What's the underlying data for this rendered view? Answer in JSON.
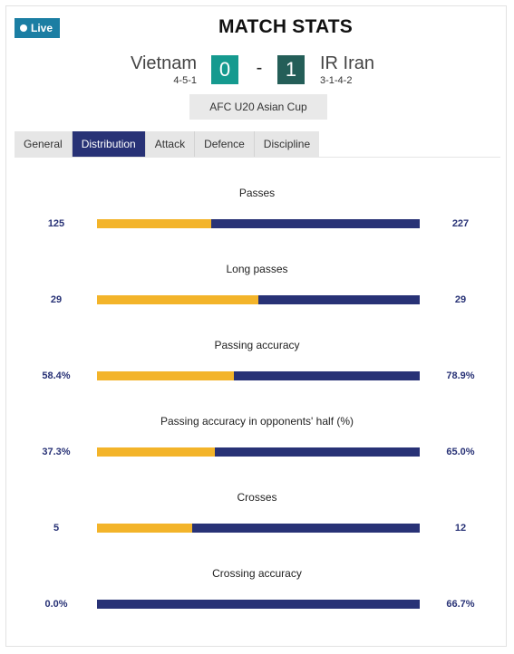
{
  "live_label": "Live",
  "title": "MATCH STATS",
  "home": {
    "name": "Vietnam",
    "formation": "4-5-1",
    "score": "0"
  },
  "away": {
    "name": "IR Iran",
    "formation": "3-1-4-2",
    "score": "1"
  },
  "score_separator": "-",
  "competition": "AFC U20 Asian Cup",
  "tabs": [
    {
      "label": "General"
    },
    {
      "label": "Distribution"
    },
    {
      "label": "Attack"
    },
    {
      "label": "Defence"
    },
    {
      "label": "Discipline"
    }
  ],
  "active_tab": "Distribution",
  "colors": {
    "home_bar": "#f3b42a",
    "away_bar": "#283276",
    "live_badge": "#1b7ea3",
    "active_tab": "#283276"
  },
  "stats": [
    {
      "label": "Passes",
      "home": "125",
      "away": "227",
      "home_share": 0.355
    },
    {
      "label": "Long passes",
      "home": "29",
      "away": "29",
      "home_share": 0.5
    },
    {
      "label": "Passing accuracy",
      "home": "58.4%",
      "away": "78.9%",
      "home_share": 0.425
    },
    {
      "label": "Passing accuracy in opponents' half (%)",
      "home": "37.3%",
      "away": "65.0%",
      "home_share": 0.365
    },
    {
      "label": "Crosses",
      "home": "5",
      "away": "12",
      "home_share": 0.294
    },
    {
      "label": "Crossing accuracy",
      "home": "0.0%",
      "away": "66.7%",
      "home_share": 0.0
    }
  ]
}
